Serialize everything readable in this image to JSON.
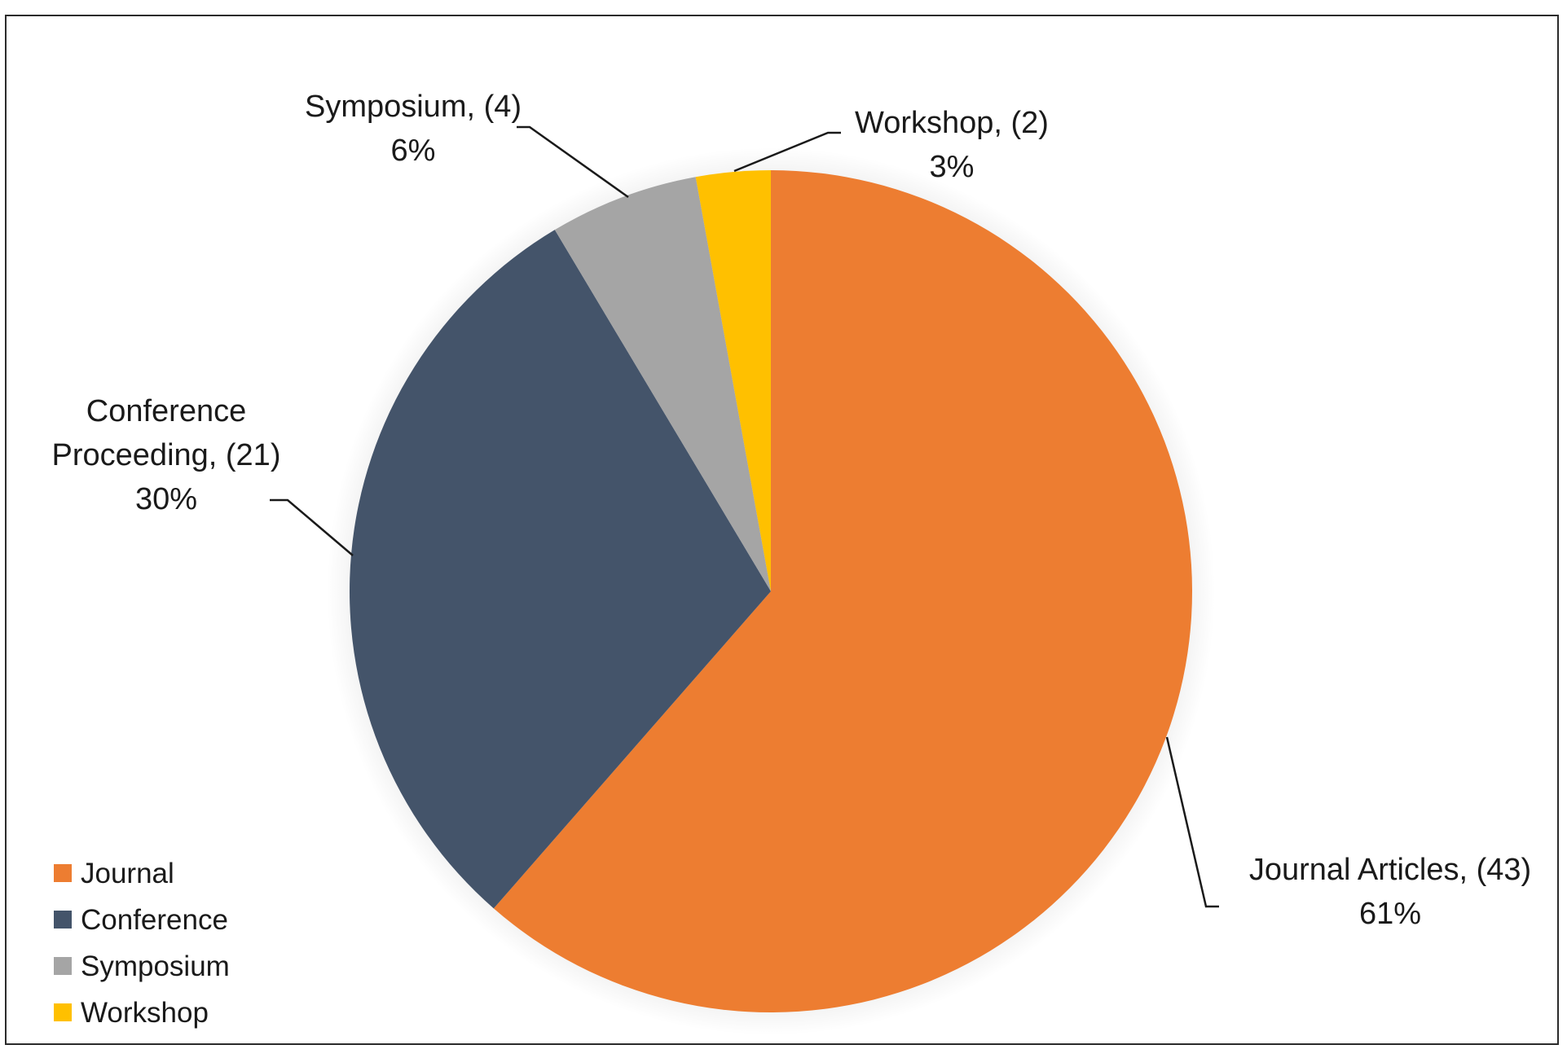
{
  "chart_data": {
    "type": "pie",
    "title": "",
    "slices": [
      {
        "category": "Journal",
        "label": "Journal Articles, (43)",
        "pct_label": "61%",
        "value": 43,
        "color": "#ED7D31"
      },
      {
        "category": "Conference",
        "label": "Conference Proceeding, (21)",
        "label_lines": [
          "Conference",
          "Proceeding, (21)"
        ],
        "pct_label": "30%",
        "value": 21,
        "color": "#44546A"
      },
      {
        "category": "Symposium",
        "label": "Symposium, (4)",
        "pct_label": "6%",
        "value": 4,
        "color": "#A5A5A5"
      },
      {
        "category": "Workshop",
        "label": "Workshop, (2)",
        "pct_label": "3%",
        "value": 2,
        "color": "#FFC000"
      }
    ],
    "legend": {
      "placement": "bottom-left",
      "entries": [
        "Journal",
        "Conference",
        "Symposium",
        "Workshop"
      ]
    }
  }
}
